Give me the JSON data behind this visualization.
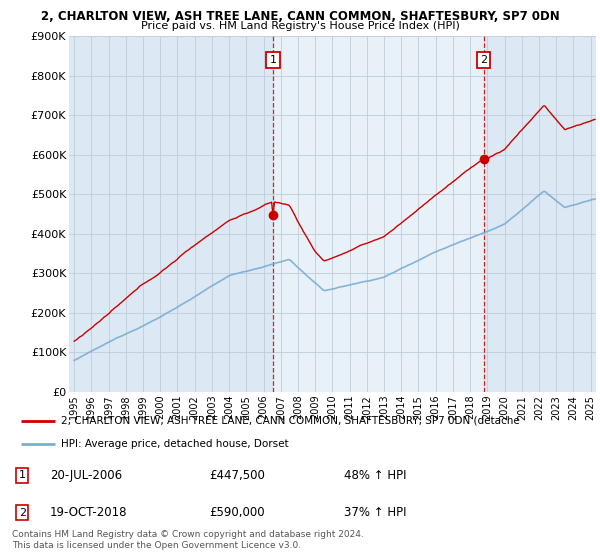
{
  "title1": "2, CHARLTON VIEW, ASH TREE LANE, CANN COMMON, SHAFTESBURY, SP7 0DN",
  "title2": "Price paid vs. HM Land Registry's House Price Index (HPI)",
  "ylim": [
    0,
    900000
  ],
  "yticks": [
    0,
    100000,
    200000,
    300000,
    400000,
    500000,
    600000,
    700000,
    800000,
    900000
  ],
  "ytick_labels": [
    "£0",
    "£100K",
    "£200K",
    "£300K",
    "£400K",
    "£500K",
    "£600K",
    "£700K",
    "£800K",
    "£900K"
  ],
  "xlim_start": 1994.7,
  "xlim_end": 2025.3,
  "sale1_x": 2006.55,
  "sale1_y": 447500,
  "sale2_x": 2018.79,
  "sale2_y": 590000,
  "legend_line1": "2, CHARLTON VIEW, ASH TREE LANE, CANN COMMON, SHAFTESBURY, SP7 0DN (detache",
  "legend_line2": "HPI: Average price, detached house, Dorset",
  "annotation1": [
    "1",
    "20-JUL-2006",
    "£447,500",
    "48% ↑ HPI"
  ],
  "annotation2": [
    "2",
    "19-OCT-2018",
    "£590,000",
    "37% ↑ HPI"
  ],
  "footer": "Contains HM Land Registry data © Crown copyright and database right 2024.\nThis data is licensed under the Open Government Licence v3.0.",
  "red_color": "#cc0000",
  "blue_color": "#7aadd4",
  "plot_bg": "#dce8f3",
  "highlight_bg": "#e8f0f8",
  "grid_color": "#c0ccd8",
  "fig_bg": "#ffffff"
}
